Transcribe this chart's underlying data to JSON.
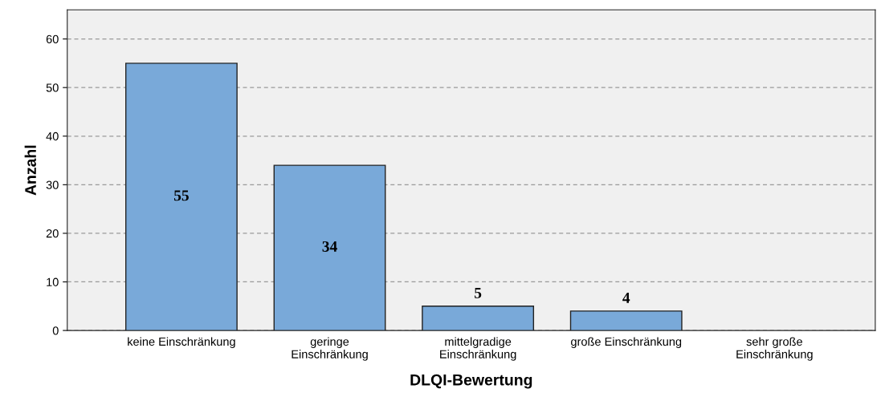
{
  "chart_data": {
    "type": "bar",
    "xlabel": "DLQI-Bewertung",
    "ylabel": "Anzahl",
    "categories": [
      "keine Einschränkung",
      "geringe Einschränkung",
      "mittelgradige Einschränkung",
      "große Einschränkung",
      "sehr große Einschränkung"
    ],
    "values": [
      55,
      34,
      5,
      4,
      0
    ],
    "value_labels": [
      "55",
      "34",
      "5",
      "4",
      null
    ],
    "color": "#79a9d9",
    "ylim": [
      0,
      66
    ],
    "yticks": [
      0,
      10,
      20,
      30,
      40,
      50,
      60
    ],
    "grid": "y"
  }
}
